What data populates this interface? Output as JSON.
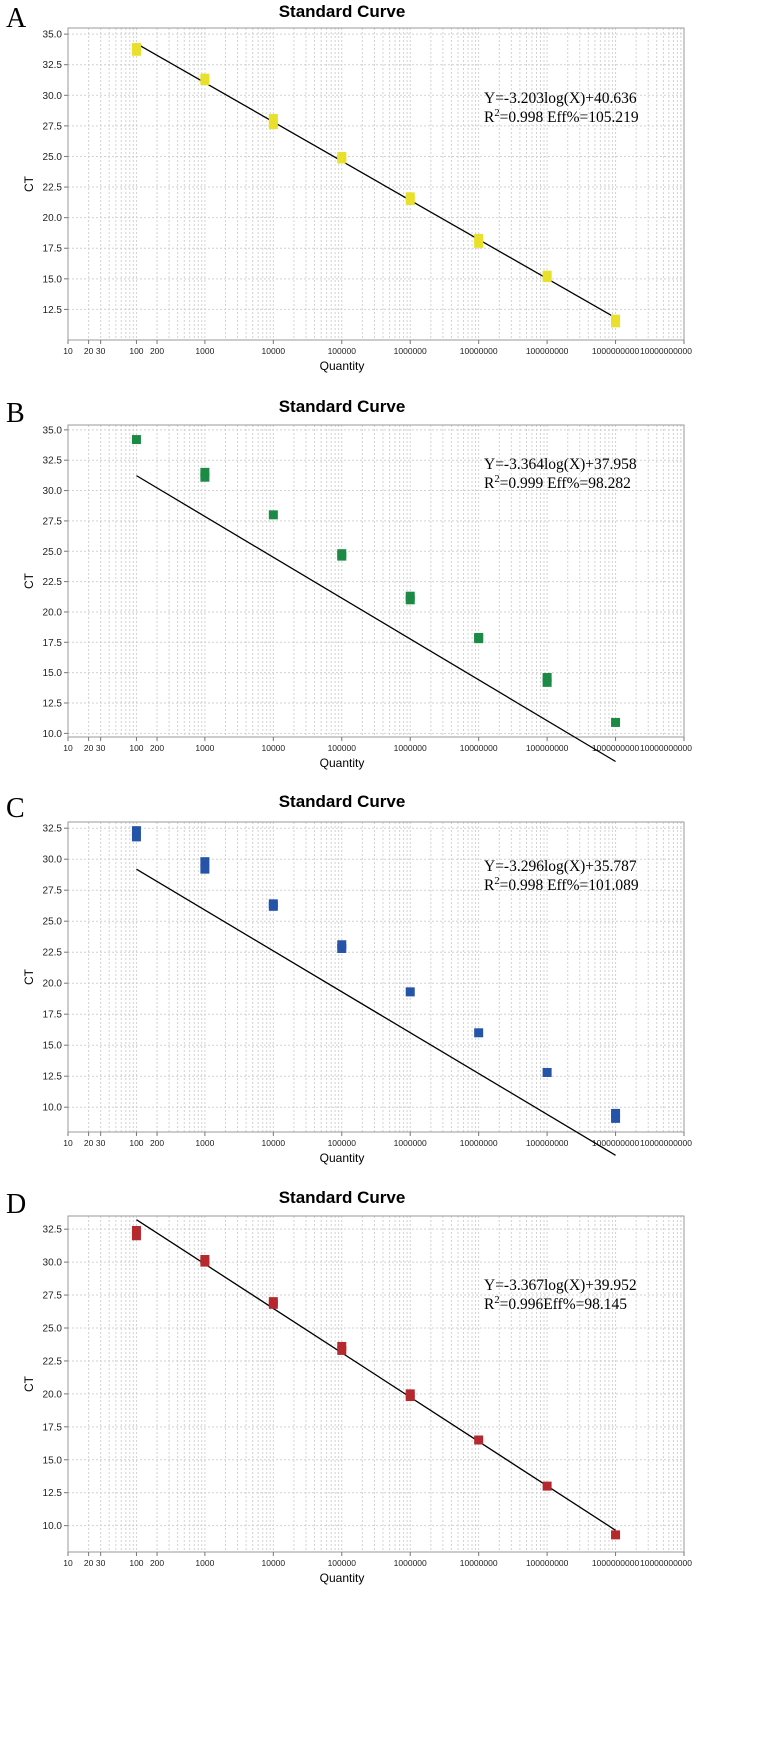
{
  "chart_data": [
    {
      "type": "scatter",
      "panel": "A",
      "title": "Standard Curve",
      "xlabel": "Quantity",
      "ylabel": "CT",
      "x_scale": "log",
      "xlim": [
        10,
        10000000000
      ],
      "ylim": [
        10.0,
        35.5
      ],
      "x_tick_values": [
        10,
        20,
        30,
        100,
        200,
        1000,
        10000,
        100000,
        1000000,
        10000000,
        100000000,
        1000000000,
        10000000000
      ],
      "x_tick_labels": [
        "10",
        "20",
        "30",
        "100",
        "200",
        "1000",
        "10000",
        "100000",
        "1000000",
        "10000000",
        "100000000",
        "1000000000",
        "10000000000"
      ],
      "y_ticks": [
        12.5,
        15.0,
        17.5,
        20.0,
        22.5,
        25.0,
        27.5,
        30.0,
        32.5,
        35.0
      ],
      "y_tick_labels": [
        "12.5",
        "15.0",
        "17.5",
        "20.0",
        "22.5",
        "25.0",
        "27.5",
        "30.0",
        "32.5",
        "35.0"
      ],
      "color": "#e8e02a",
      "points": [
        {
          "x": 100,
          "y": 33.6
        },
        {
          "x": 100,
          "y": 33.9
        },
        {
          "x": 1000,
          "y": 31.2
        },
        {
          "x": 1000,
          "y": 31.4
        },
        {
          "x": 10000,
          "y": 27.6
        },
        {
          "x": 10000,
          "y": 28.1
        },
        {
          "x": 100000,
          "y": 24.8
        },
        {
          "x": 100000,
          "y": 25.0
        },
        {
          "x": 1000000,
          "y": 21.4
        },
        {
          "x": 1000000,
          "y": 21.7
        },
        {
          "x": 10000000,
          "y": 17.9
        },
        {
          "x": 10000000,
          "y": 18.3
        },
        {
          "x": 100000000,
          "y": 15.1
        },
        {
          "x": 100000000,
          "y": 15.3
        },
        {
          "x": 1000000000,
          "y": 11.4
        },
        {
          "x": 1000000000,
          "y": 11.7
        }
      ],
      "fit": {
        "slope": -3.203,
        "intercept": 40.636,
        "x_start": 100,
        "x_end": 1000000000
      },
      "equation_line1": "Y=-3.203log(X)+40.636",
      "equation_line2_r": "R",
      "equation_line2_sup": "2",
      "equation_line2_rest": "=0.998 Eff%=105.219"
    },
    {
      "type": "scatter",
      "panel": "B",
      "title": "Standard Curve",
      "xlabel": "Quantity",
      "ylabel": "CT",
      "x_scale": "log",
      "xlim": [
        10,
        10000000000
      ],
      "ylim": [
        9.7,
        35.4
      ],
      "x_tick_values": [
        10,
        20,
        30,
        100,
        200,
        1000,
        10000,
        100000,
        1000000,
        10000000,
        100000000,
        1000000000,
        10000000000
      ],
      "x_tick_labels": [
        "10",
        "20",
        "30",
        "100",
        "200",
        "1000",
        "10000",
        "100000",
        "1000000",
        "10000000",
        "100000000",
        "1000000000",
        "10000000000"
      ],
      "y_ticks": [
        10.0,
        12.5,
        15.0,
        17.5,
        20.0,
        22.5,
        25.0,
        27.5,
        30.0,
        32.5,
        35.0
      ],
      "y_tick_labels": [
        "10.0",
        "12.5",
        "15.0",
        "17.5",
        "20.0",
        "22.5",
        "25.0",
        "27.5",
        "30.0",
        "32.5",
        "35.0"
      ],
      "color": "#1a8a45",
      "points": [
        {
          "x": 100,
          "y": 34.2
        },
        {
          "x": 1000,
          "y": 31.1
        },
        {
          "x": 1000,
          "y": 31.5
        },
        {
          "x": 10000,
          "y": 28.0
        },
        {
          "x": 100000,
          "y": 24.6
        },
        {
          "x": 100000,
          "y": 24.8
        },
        {
          "x": 1000000,
          "y": 21.0
        },
        {
          "x": 1000000,
          "y": 21.3
        },
        {
          "x": 10000000,
          "y": 17.8
        },
        {
          "x": 10000000,
          "y": 17.9
        },
        {
          "x": 100000000,
          "y": 14.2
        },
        {
          "x": 100000000,
          "y": 14.6
        },
        {
          "x": 1000000000,
          "y": 10.9
        }
      ],
      "fit": {
        "slope": -3.364,
        "intercept": 37.958,
        "x_start": 100,
        "x_end": 1000000000
      },
      "equation_line1": "Y=-3.364log(X)+37.958",
      "equation_line2_r": "R",
      "equation_line2_sup": "2",
      "equation_line2_rest": "=0.999 Eff%=98.282"
    },
    {
      "type": "scatter",
      "panel": "C",
      "title": "Standard Curve",
      "xlabel": "Quantity",
      "ylabel": "CT",
      "x_scale": "log",
      "xlim": [
        10,
        10000000000
      ],
      "ylim": [
        8.0,
        33.0
      ],
      "x_tick_values": [
        10,
        20,
        30,
        100,
        200,
        1000,
        10000,
        100000,
        1000000,
        10000000,
        100000000,
        1000000000,
        10000000000
      ],
      "x_tick_labels": [
        "10",
        "20",
        "30",
        "100",
        "200",
        "1000",
        "10000",
        "100000",
        "1000000",
        "10000000",
        "100000000",
        "1000000000",
        "10000000000"
      ],
      "y_ticks": [
        10.0,
        12.5,
        15.0,
        17.5,
        20.0,
        22.5,
        25.0,
        27.5,
        30.0,
        32.5
      ],
      "y_tick_labels": [
        "10.0",
        "12.5",
        "15.0",
        "17.5",
        "20.0",
        "22.5",
        "25.0",
        "27.5",
        "30.0",
        "32.5"
      ],
      "color": "#2453a8",
      "points": [
        {
          "x": 100,
          "y": 31.8
        },
        {
          "x": 100,
          "y": 32.3
        },
        {
          "x": 1000,
          "y": 29.2
        },
        {
          "x": 1000,
          "y": 29.8
        },
        {
          "x": 10000,
          "y": 26.2
        },
        {
          "x": 10000,
          "y": 26.4
        },
        {
          "x": 100000,
          "y": 22.8
        },
        {
          "x": 100000,
          "y": 23.1
        },
        {
          "x": 1000000,
          "y": 19.3
        },
        {
          "x": 10000000,
          "y": 16.0
        },
        {
          "x": 100000000,
          "y": 12.8
        },
        {
          "x": 1000000000,
          "y": 9.1
        },
        {
          "x": 1000000000,
          "y": 9.5
        }
      ],
      "fit": {
        "slope": -3.296,
        "intercept": 35.787,
        "x_start": 100,
        "x_end": 1000000000
      },
      "equation_line1": "Y=-3.296log(X)+35.787",
      "equation_line2_r": "R",
      "equation_line2_sup": "2",
      "equation_line2_rest": "=0.998 Eff%=101.089"
    },
    {
      "type": "scatter",
      "panel": "D",
      "title": "Standard Curve",
      "xlabel": "Quantity",
      "ylabel": "CT",
      "x_scale": "log",
      "xlim": [
        10,
        10000000000
      ],
      "ylim": [
        8.0,
        33.5
      ],
      "x_tick_values": [
        10,
        20,
        30,
        100,
        200,
        1000,
        10000,
        100000,
        1000000,
        10000000,
        100000000,
        1000000000,
        10000000000
      ],
      "x_tick_labels": [
        "10",
        "20",
        "30",
        "100",
        "200",
        "1000",
        "10000",
        "100000",
        "1000000",
        "10000000",
        "100000000",
        "1000000000",
        "10000000000"
      ],
      "y_ticks": [
        10.0,
        12.5,
        15.0,
        17.5,
        20.0,
        22.5,
        25.0,
        27.5,
        30.0,
        32.5
      ],
      "y_tick_labels": [
        "10.0",
        "12.5",
        "15.0",
        "17.5",
        "20.0",
        "22.5",
        "25.0",
        "27.5",
        "30.0",
        "32.5"
      ],
      "color": "#b5282e",
      "points": [
        {
          "x": 100,
          "y": 32.0
        },
        {
          "x": 100,
          "y": 32.4
        },
        {
          "x": 1000,
          "y": 30.0
        },
        {
          "x": 1000,
          "y": 30.2
        },
        {
          "x": 10000,
          "y": 26.8
        },
        {
          "x": 10000,
          "y": 27.0
        },
        {
          "x": 100000,
          "y": 23.3
        },
        {
          "x": 100000,
          "y": 23.6
        },
        {
          "x": 1000000,
          "y": 19.8
        },
        {
          "x": 1000000,
          "y": 20.0
        },
        {
          "x": 10000000,
          "y": 16.5
        },
        {
          "x": 100000000,
          "y": 13.0
        },
        {
          "x": 1000000000,
          "y": 9.3
        }
      ],
      "fit": {
        "slope": -3.367,
        "intercept": 39.952,
        "x_start": 100,
        "x_end": 1000000000
      },
      "equation_line1": "Y=-3.367log(X)+39.952",
      "equation_line2_r": "R",
      "equation_line2_sup": "2",
      "equation_line2_rest": "=0.996Eff%=98.145"
    }
  ]
}
